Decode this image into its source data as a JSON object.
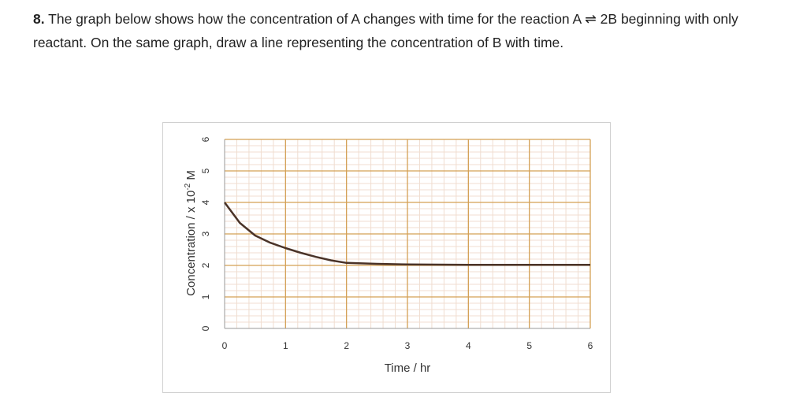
{
  "question": {
    "number": "8.",
    "text_before_arrow": "The graph below shows how the concentration of A changes with time for the reaction  A",
    "equilibrium_symbol": "⇌",
    "text_after_arrow": " 2B beginning with only reactant.  On the same graph, draw a line representing the concentration of B with time."
  },
  "chart_data": {
    "type": "line",
    "title": "",
    "xlabel": "Time / hr",
    "ylabel_prefix": "Concentration / x 10",
    "ylabel_sup": "-2",
    "ylabel_suffix": " M",
    "xlim": [
      0,
      6
    ],
    "ylim": [
      0,
      6
    ],
    "xticks": [
      "0",
      "1",
      "2",
      "3",
      "4",
      "5",
      "6"
    ],
    "yticks": [
      "0",
      "1",
      "2",
      "3",
      "4",
      "5",
      "6"
    ],
    "grid": true,
    "minor_grid": true,
    "series": [
      {
        "x": [
          0,
          0.25,
          0.5,
          0.75,
          1,
          1.25,
          1.5,
          1.75,
          2,
          2.5,
          3,
          4,
          5,
          6
        ],
        "y": [
          4.0,
          3.35,
          2.95,
          2.72,
          2.55,
          2.4,
          2.27,
          2.16,
          2.08,
          2.05,
          2.03,
          2.02,
          2.02,
          2.02
        ],
        "color": "#4a3328"
      }
    ],
    "colors": {
      "major_grid": "#d4a055",
      "minor_grid": "#f0ddd0",
      "axis": "#999999"
    }
  }
}
